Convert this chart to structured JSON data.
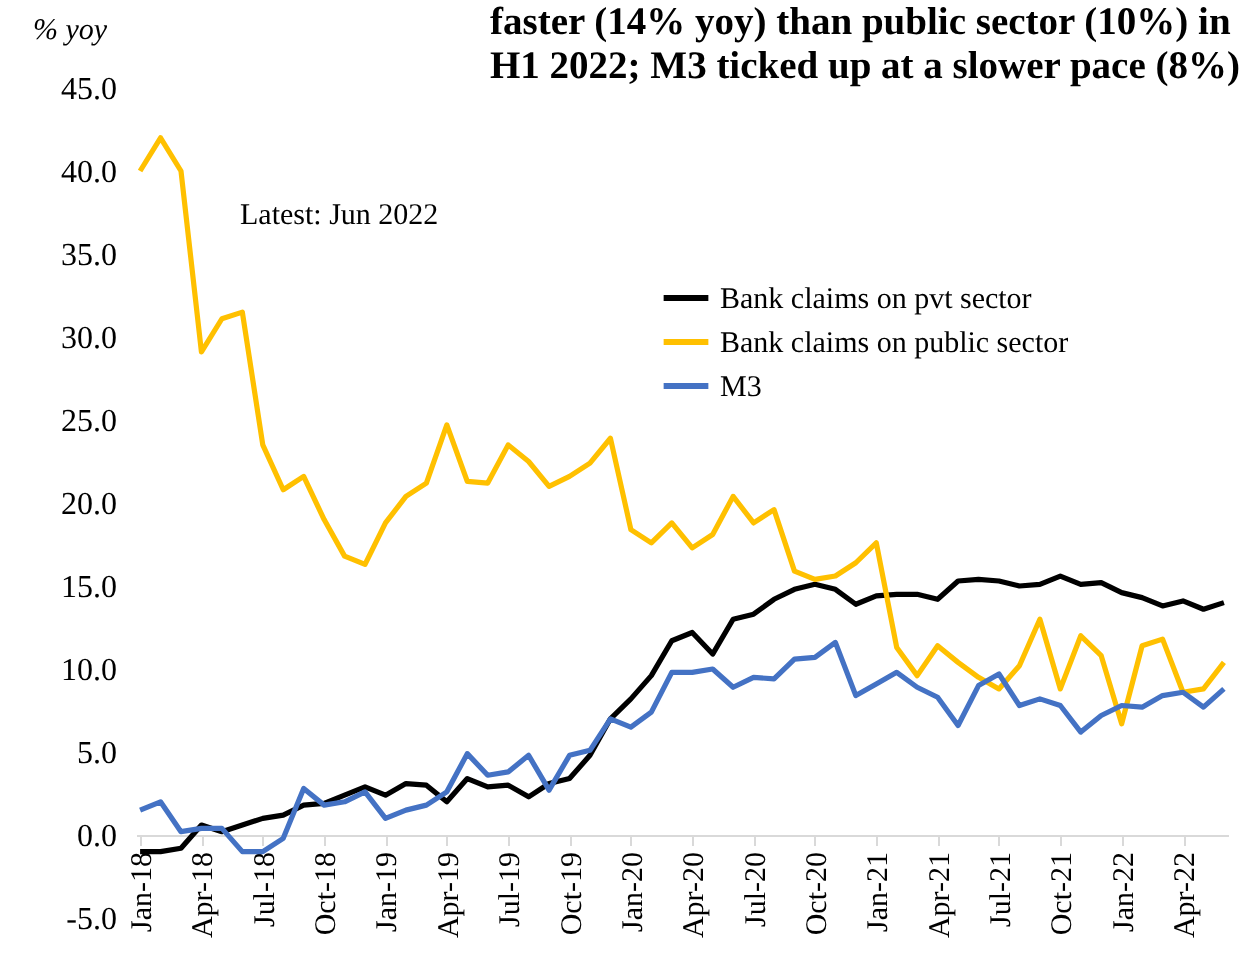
{
  "chart_data": {
    "type": "line",
    "title": "faster  (14% yoy) than public sector (10%) in\nH1 2022; M3 ticked up at a slower pace (8%)",
    "ylabel": "% yoy",
    "annotations": [
      "Latest: Jun 2022"
    ],
    "categories": [
      "Jan-18",
      null,
      null,
      "Apr-18",
      null,
      null,
      "Jul-18",
      null,
      null,
      "Oct-18",
      null,
      null,
      "Jan-19",
      null,
      null,
      "Apr-19",
      null,
      null,
      "Jul-19",
      null,
      null,
      "Oct-19",
      null,
      null,
      "Jan-20",
      null,
      null,
      "Apr-20",
      null,
      null,
      "Jul-20",
      null,
      null,
      "Oct-20",
      null,
      null,
      "Jan-21",
      null,
      null,
      "Apr-21",
      null,
      null,
      "Jul-21",
      null,
      null,
      "Oct-21",
      null,
      null,
      "Jan-22",
      null,
      null,
      "Apr-22",
      null,
      null
    ],
    "series": [
      {
        "name": "Bank claims on pvt sector",
        "color": "#000000",
        "values": [
          -1.0,
          -1.0,
          -0.8,
          0.6,
          0.2,
          0.6,
          1.0,
          1.2,
          1.8,
          1.9,
          2.4,
          2.9,
          2.4,
          3.1,
          3.0,
          2.0,
          3.4,
          2.9,
          3.0,
          2.3,
          3.1,
          3.4,
          4.8,
          7.0,
          8.2,
          9.6,
          11.7,
          12.2,
          10.9,
          13.0,
          13.3,
          14.2,
          14.8,
          15.1,
          14.8,
          13.9,
          14.4,
          14.5,
          14.5,
          14.2,
          15.3,
          15.4,
          15.3,
          15.0,
          15.1,
          15.6,
          15.1,
          15.2,
          14.6,
          14.3,
          13.8,
          14.1,
          13.6,
          14.0
        ]
      },
      {
        "name": "Bank claims on public sector",
        "color": "#ffc000",
        "values": [
          40.0,
          42.0,
          40.0,
          29.1,
          31.1,
          31.5,
          23.5,
          20.8,
          21.6,
          19.0,
          16.8,
          16.3,
          18.8,
          20.4,
          21.2,
          24.7,
          21.3,
          21.2,
          23.5,
          22.5,
          21.0,
          21.6,
          22.4,
          23.9,
          18.4,
          17.6,
          18.8,
          17.3,
          18.1,
          20.4,
          18.8,
          19.6,
          15.9,
          15.4,
          15.6,
          16.4,
          17.6,
          11.3,
          9.6,
          11.4,
          10.4,
          9.5,
          8.8,
          10.2,
          13.0,
          8.8,
          12.0,
          10.8,
          6.7,
          11.4,
          11.8,
          8.6,
          8.8,
          10.4
        ]
      },
      {
        "name": "M3",
        "color": "#4472c4",
        "values": [
          1.5,
          2.0,
          0.2,
          0.4,
          0.4,
          -1.0,
          -1.0,
          -0.2,
          2.8,
          1.8,
          2.0,
          2.6,
          1.0,
          1.5,
          1.8,
          2.6,
          4.9,
          3.6,
          3.8,
          4.8,
          2.7,
          4.8,
          5.1,
          7.0,
          6.5,
          7.4,
          9.8,
          9.8,
          10.0,
          8.9,
          9.5,
          9.4,
          10.6,
          10.7,
          11.6,
          8.4,
          9.1,
          9.8,
          8.9,
          8.3,
          6.6,
          9.0,
          9.7,
          7.8,
          8.2,
          7.8,
          6.2,
          7.2,
          7.8,
          7.7,
          8.4,
          8.6,
          7.7,
          8.8
        ]
      }
    ],
    "ylim": [
      -5,
      45
    ],
    "yticks": [
      {
        "value": -5,
        "label": "-5.0"
      },
      {
        "value": 0,
        "label": "0.0"
      },
      {
        "value": 5,
        "label": "5.0"
      },
      {
        "value": 10,
        "label": "10.0"
      },
      {
        "value": 15,
        "label": "15.0"
      },
      {
        "value": 20,
        "label": "20.0"
      },
      {
        "value": 25,
        "label": "25.0"
      },
      {
        "value": 30,
        "label": "30.0"
      },
      {
        "value": 35,
        "label": "35.0"
      },
      {
        "value": 40,
        "label": "40.0"
      },
      {
        "value": 45,
        "label": "45.0"
      }
    ],
    "legend": "top right"
  }
}
